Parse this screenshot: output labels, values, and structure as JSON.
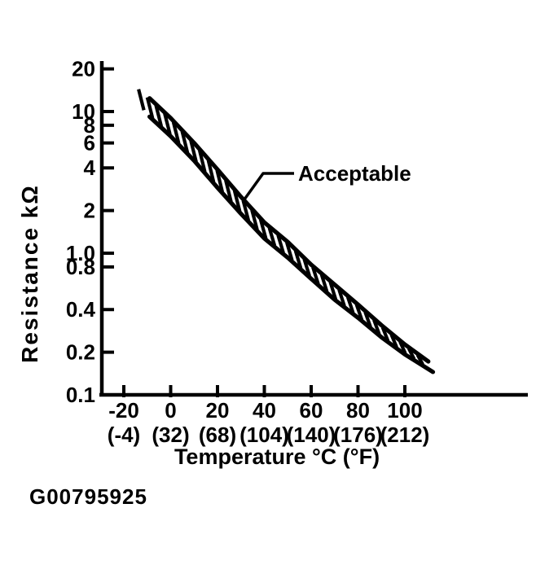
{
  "figure": {
    "code": "G00795925",
    "ink_color": "#000000",
    "paper_color": "#ffffff"
  },
  "chart_data": {
    "type": "area",
    "title": "",
    "xlabel": "Temperature °C (°F)",
    "ylabel": "Resistance kΩ",
    "y_scale": "log",
    "ylim": [
      0.1,
      20
    ],
    "xlim": [
      -30,
      125
    ],
    "grid": false,
    "legend_position": "none",
    "annotation": {
      "label": "Acceptable",
      "points_to": "acceptable-band"
    },
    "y_ticks": [
      {
        "value": 20,
        "label": "20"
      },
      {
        "value": 10,
        "label": "10"
      },
      {
        "value": 8,
        "label": "8"
      },
      {
        "value": 6,
        "label": "6"
      },
      {
        "value": 4,
        "label": "4"
      },
      {
        "value": 2,
        "label": "2"
      },
      {
        "value": 1.0,
        "label": "1.0"
      },
      {
        "value": 0.8,
        "label": "0.8"
      },
      {
        "value": 0.4,
        "label": "0.4"
      },
      {
        "value": 0.2,
        "label": "0.2"
      },
      {
        "value": 0.1,
        "label": "0.1"
      }
    ],
    "x_ticks": [
      {
        "value": -20,
        "label_c": "-20",
        "label_f": "(-4)"
      },
      {
        "value": 0,
        "label_c": "0",
        "label_f": "(32)"
      },
      {
        "value": 20,
        "label_c": "20",
        "label_f": "(68)"
      },
      {
        "value": 40,
        "label_c": "40",
        "label_f": "(104)"
      },
      {
        "value": 60,
        "label_c": "60",
        "label_f": "(140)"
      },
      {
        "value": 80,
        "label_c": "80",
        "label_f": "(176)"
      },
      {
        "value": 100,
        "label_c": "100",
        "label_f": "(212)"
      }
    ],
    "series": [
      {
        "name": "acceptable_upper_limit",
        "role": "upper",
        "temperature_c": [
          -9,
          0,
          10,
          20,
          30,
          40,
          50,
          60,
          70,
          80,
          90,
          100,
          110
        ],
        "resistance_kohm": [
          12.4,
          9.0,
          6.0,
          3.9,
          2.5,
          1.65,
          1.2,
          0.83,
          0.6,
          0.434,
          0.31,
          0.227,
          0.172
        ]
      },
      {
        "name": "acceptable_lower_limit",
        "role": "lower",
        "temperature_c": [
          -9,
          0,
          10,
          20,
          30,
          40,
          50,
          60,
          70,
          80,
          90,
          100,
          112
        ],
        "resistance_kohm": [
          9.2,
          6.7,
          4.5,
          2.9,
          1.9,
          1.27,
          0.93,
          0.66,
          0.47,
          0.35,
          0.255,
          0.193,
          0.145
        ]
      }
    ]
  }
}
